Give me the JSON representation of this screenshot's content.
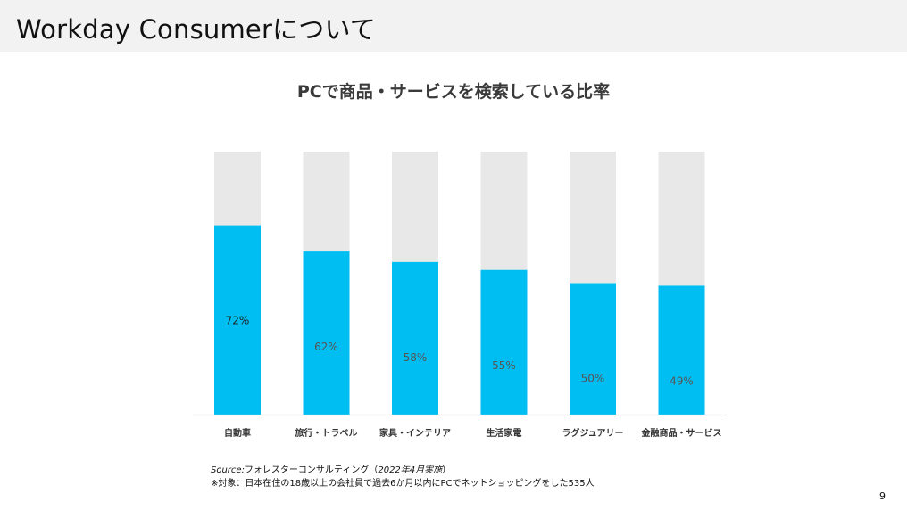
{
  "slide": {
    "title": "Workday Consumerについて",
    "page_number": "9"
  },
  "source": {
    "label": "Source:",
    "text": "フォレスターコンサルティング（",
    "date": "2022年4月実施",
    "close": "）",
    "note": "※対象：日本在住の18歳以上の会社員で過去6か月以内にPCでネットショッピングをした535人"
  },
  "colors": {
    "bar": "#00bef2",
    "background_bar": "#e8e8e8",
    "baseline": "#d9d9d9",
    "label_dark": "#222222",
    "label_muted": "#555555"
  },
  "chart_data": {
    "type": "bar",
    "title": "PCで商品・サービスを検索している比率",
    "categories": [
      "自動車",
      "旅行・トラベル",
      "家具・インテリア",
      "生活家電",
      "ラグジュアリー",
      "金融商品・サービス"
    ],
    "values": [
      72,
      62,
      58,
      55,
      50,
      49
    ],
    "data_labels": [
      "72%",
      "62%",
      "58%",
      "55%",
      "50%",
      "49%"
    ],
    "ylim": [
      0,
      100
    ],
    "grid": false,
    "legend": "none"
  }
}
